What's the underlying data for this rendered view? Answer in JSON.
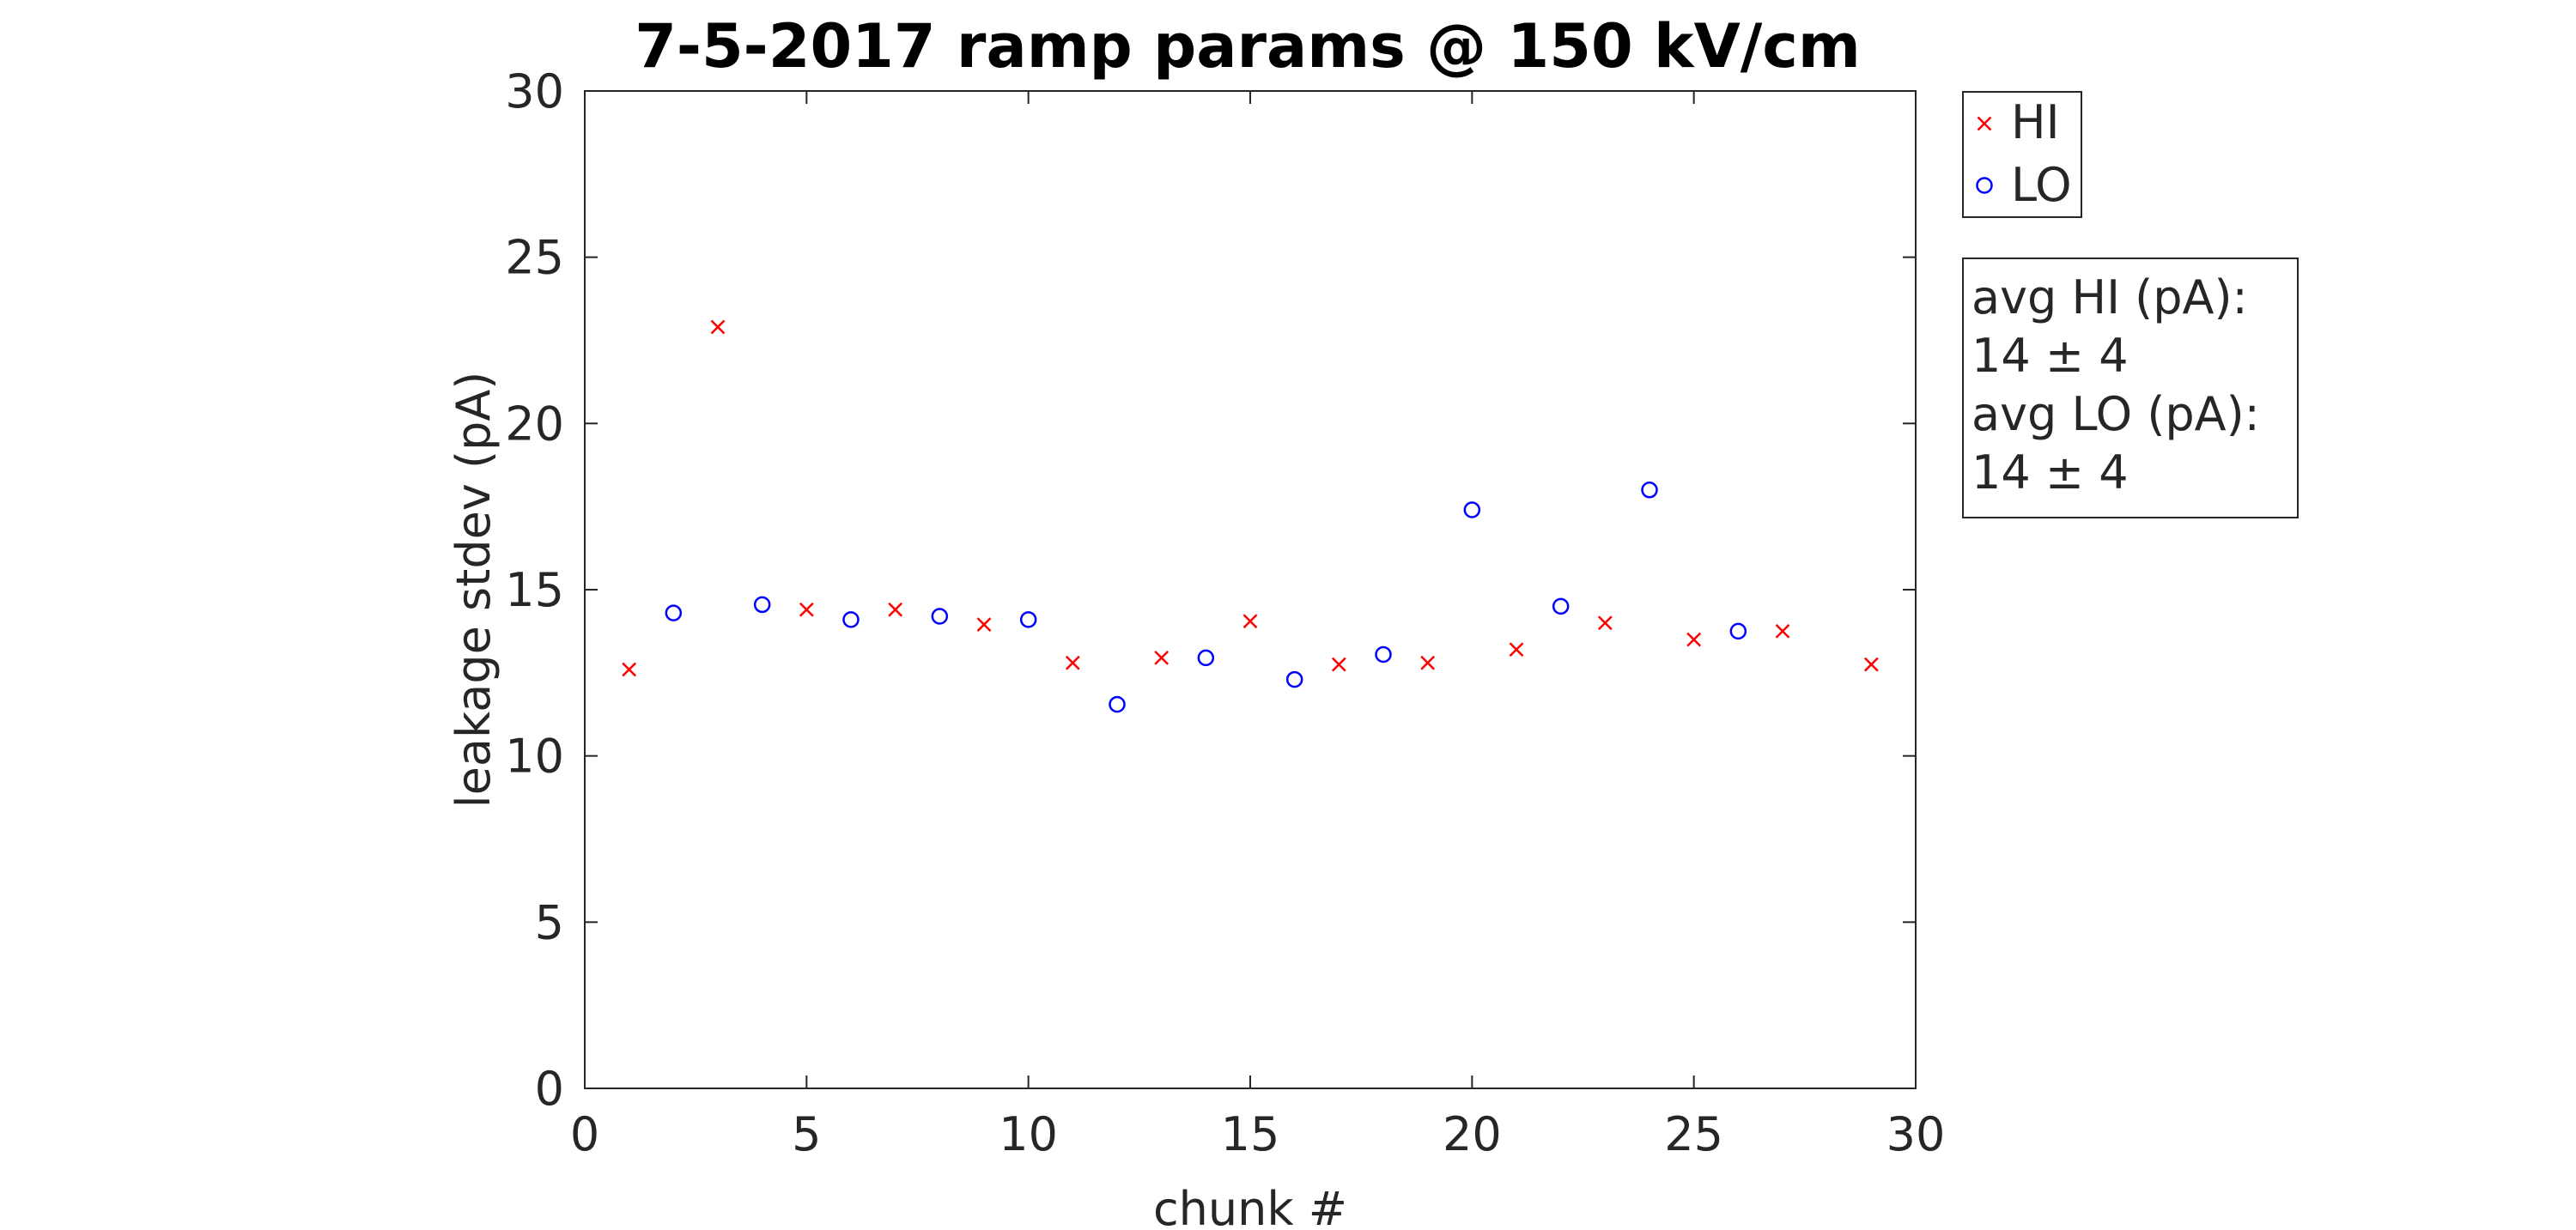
{
  "chart_data": {
    "type": "scatter",
    "title": "7-5-2017 ramp params @ 150 kV/cm",
    "xlabel": "chunk #",
    "ylabel": "leakage stdev (pA)",
    "xlim": [
      0,
      30
    ],
    "ylim": [
      0,
      30
    ],
    "x_ticks": [
      0,
      5,
      10,
      15,
      20,
      25,
      30
    ],
    "y_ticks": [
      0,
      5,
      10,
      15,
      20,
      25,
      30
    ],
    "grid": false,
    "legend_position": "top-right-outside",
    "series": [
      {
        "name": "HI",
        "marker": "x",
        "color": "#ff0000",
        "x": [
          1,
          3,
          5,
          7,
          9,
          11,
          13,
          15,
          17,
          19,
          21,
          23,
          25,
          27,
          29
        ],
        "y": [
          12.6,
          22.9,
          14.4,
          14.4,
          13.95,
          12.8,
          12.95,
          14.05,
          12.75,
          12.8,
          13.2,
          14.0,
          13.5,
          13.75,
          12.75
        ]
      },
      {
        "name": "LO",
        "marker": "o",
        "color": "#0000ff",
        "x": [
          2,
          4,
          6,
          8,
          10,
          12,
          14,
          16,
          18,
          20,
          22,
          24,
          26
        ],
        "y": [
          14.3,
          14.55,
          14.1,
          14.2,
          14.1,
          11.55,
          12.95,
          12.3,
          13.05,
          17.4,
          14.5,
          18.0,
          13.75
        ]
      }
    ],
    "annotation": {
      "lines": [
        "avg HI (pA):",
        "14 ± 4",
        "avg LO (pA):",
        "14 ± 4"
      ]
    }
  }
}
